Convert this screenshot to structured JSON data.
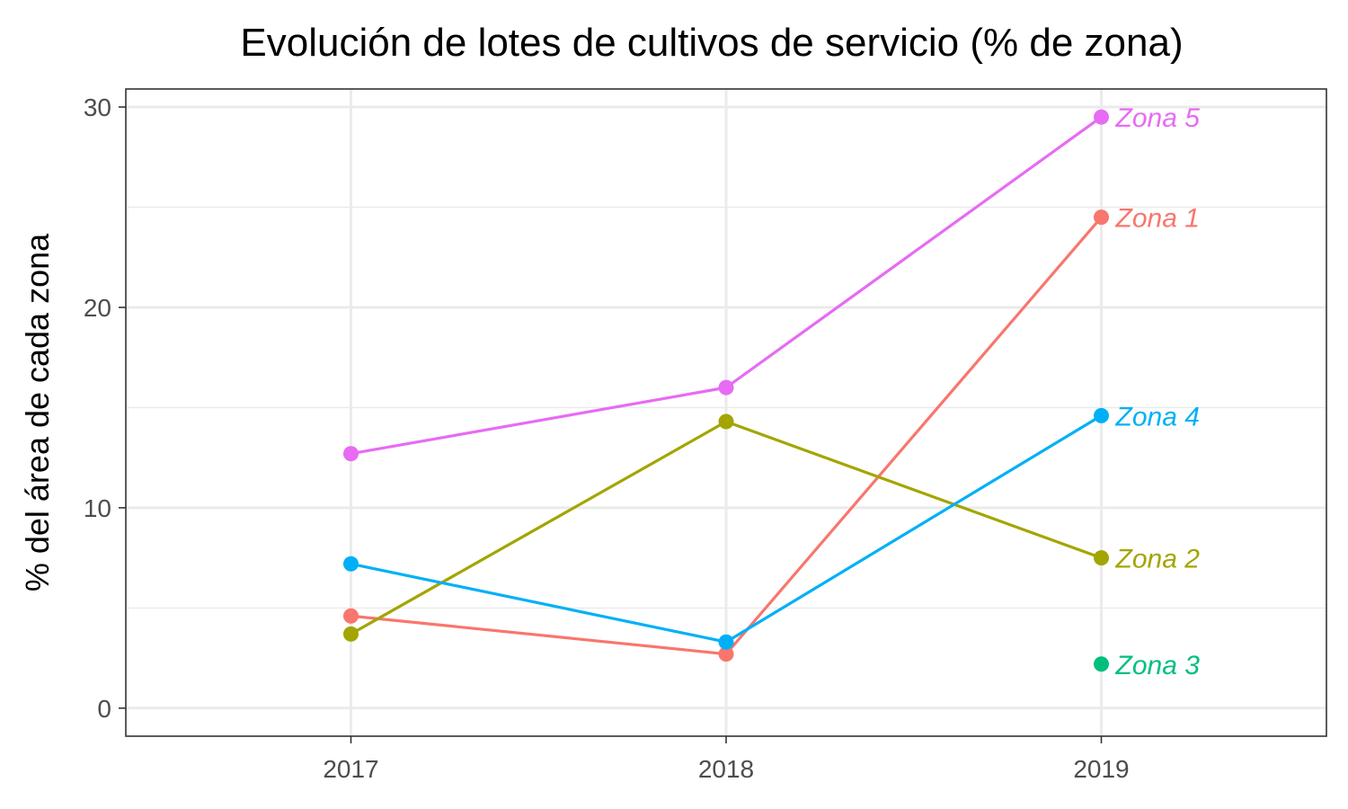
{
  "chart_data": {
    "type": "line",
    "title": "Evolución de lotes de cultivos de servicio (% de zona)",
    "xlabel": "",
    "ylabel": "% del área de cada zona",
    "categories": [
      "2017",
      "2018",
      "2019"
    ],
    "ylim": [
      -1.4,
      30.9
    ],
    "yticks": [
      0,
      10,
      20,
      30
    ],
    "grid": true,
    "legend": "direct labels at right end of each series",
    "series": [
      {
        "name": "Zona 1",
        "color": "#F8766D",
        "values": [
          4.6,
          2.7,
          24.5
        ]
      },
      {
        "name": "Zona 2",
        "color": "#A3A500",
        "values": [
          3.7,
          14.3,
          7.5
        ]
      },
      {
        "name": "Zona 3",
        "color": "#00BF7D",
        "values": [
          null,
          null,
          2.2
        ]
      },
      {
        "name": "Zona 4",
        "color": "#00B0F6",
        "values": [
          7.2,
          3.3,
          14.6
        ]
      },
      {
        "name": "Zona 5",
        "color": "#E76BF3",
        "values": [
          12.7,
          16.0,
          29.5
        ]
      }
    ]
  }
}
